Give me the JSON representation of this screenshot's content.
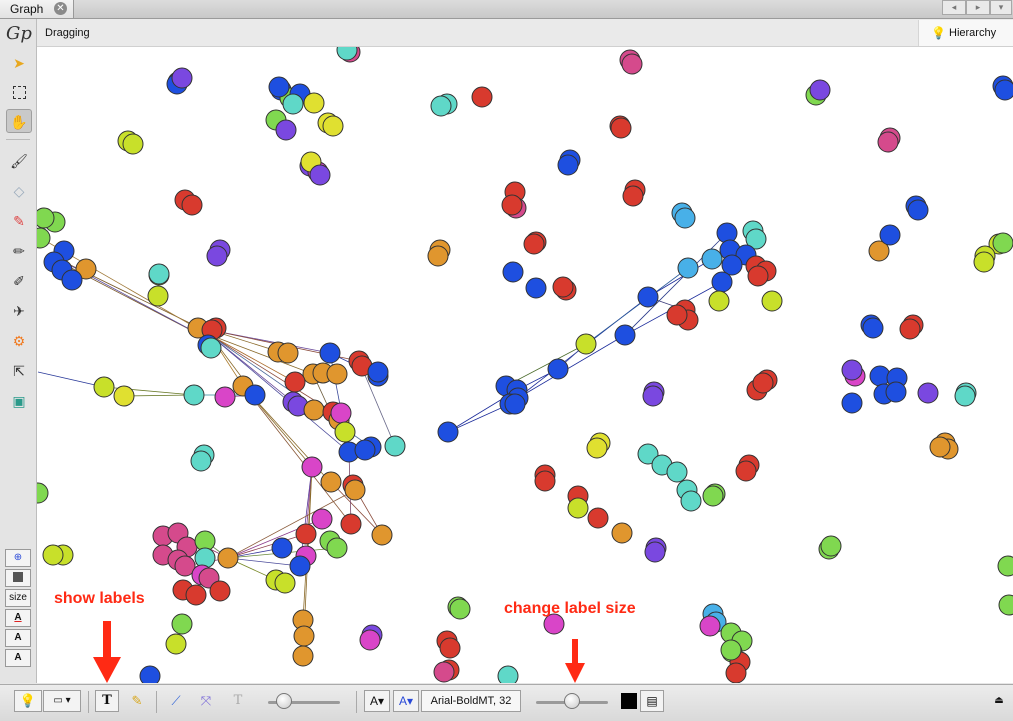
{
  "tab": {
    "title": "Graph"
  },
  "status": {
    "mode": "Dragging"
  },
  "hierarchy": {
    "label": "Hierarchy"
  },
  "left_toolbar": {
    "logo": "Gp",
    "size_label": "size"
  },
  "bottom": {
    "font": "Arial-BoldMT, 32"
  },
  "annotations": {
    "show_labels": "show labels",
    "change_label_size": "change label size"
  },
  "colors": {
    "annotation": "#ff2a14",
    "blue": "#1e4fe0",
    "orange": "#e0962e",
    "red": "#d83a2e",
    "magenta": "#d945c8",
    "pink": "#d54a8c",
    "green": "#80d850",
    "lime": "#c8e02a",
    "yellow": "#e0e030",
    "cyan": "#5fd8c8",
    "skyblue": "#48b0e8",
    "purple": "#7a48e0",
    "edge": "#8a6a2a"
  },
  "graph": {
    "nodes": [
      [
        "blue",
        178,
        82
      ],
      [
        "blue",
        177,
        84
      ],
      [
        "purple",
        182,
        78
      ],
      [
        "blue",
        281,
        90
      ],
      [
        "green",
        290,
        98
      ],
      [
        "blue",
        300,
        94
      ],
      [
        "yellow",
        314,
        103
      ],
      [
        "cyan",
        293,
        104
      ],
      [
        "blue",
        279,
        87
      ],
      [
        "green",
        276,
        120
      ],
      [
        "purple",
        286,
        130
      ],
      [
        "yellow",
        328,
        123
      ],
      [
        "yellow",
        333,
        126
      ],
      [
        "lime",
        128,
        141
      ],
      [
        "lime",
        133,
        144
      ],
      [
        "pink",
        350,
        52
      ],
      [
        "cyan",
        347,
        50
      ],
      [
        "red",
        482,
        97
      ],
      [
        "cyan",
        447,
        104
      ],
      [
        "cyan",
        441,
        106
      ],
      [
        "pink",
        630,
        60
      ],
      [
        "pink",
        632,
        64
      ],
      [
        "red",
        620,
        126
      ],
      [
        "red",
        621,
        128
      ],
      [
        "green",
        816,
        95
      ],
      [
        "purple",
        820,
        90
      ],
      [
        "pink",
        890,
        138
      ],
      [
        "pink",
        888,
        142
      ],
      [
        "blue",
        1003,
        86
      ],
      [
        "blue",
        1005,
        90
      ],
      [
        "purple",
        310,
        166
      ],
      [
        "magenta",
        318,
        172
      ],
      [
        "yellow",
        311,
        162
      ],
      [
        "purple",
        320,
        175
      ],
      [
        "blue",
        570,
        160
      ],
      [
        "blue",
        568,
        165
      ],
      [
        "red",
        515,
        192
      ],
      [
        "pink",
        516,
        208
      ],
      [
        "red",
        512,
        205
      ],
      [
        "red",
        635,
        190
      ],
      [
        "red",
        633,
        196
      ],
      [
        "skyblue",
        682,
        213
      ],
      [
        "skyblue",
        685,
        218
      ],
      [
        "blue",
        916,
        206
      ],
      [
        "blue",
        918,
        210
      ],
      [
        "red",
        185,
        200
      ],
      [
        "red",
        192,
        205
      ],
      [
        "purple",
        220,
        250
      ],
      [
        "purple",
        217,
        256
      ],
      [
        "orange",
        440,
        250
      ],
      [
        "orange",
        438,
        256
      ],
      [
        "red",
        536,
        242
      ],
      [
        "red",
        534,
        244
      ],
      [
        "blue",
        513,
        272
      ],
      [
        "blue",
        536,
        288
      ],
      [
        "red",
        566,
        290
      ],
      [
        "red",
        563,
        287
      ],
      [
        "green",
        55,
        222
      ],
      [
        "green",
        44,
        218
      ],
      [
        "green",
        40,
        238
      ],
      [
        "blue",
        64,
        251
      ],
      [
        "blue",
        54,
        262
      ],
      [
        "blue",
        62,
        270
      ],
      [
        "orange",
        86,
        269
      ],
      [
        "blue",
        72,
        280
      ],
      [
        "lime",
        159,
        275
      ],
      [
        "lime",
        158,
        296
      ],
      [
        "cyan",
        159,
        274
      ],
      [
        "orange",
        198,
        328
      ],
      [
        "red",
        216,
        328
      ],
      [
        "red",
        212,
        330
      ],
      [
        "blue",
        208,
        345
      ],
      [
        "cyan",
        211,
        348
      ],
      [
        "orange",
        278,
        352
      ],
      [
        "orange",
        288,
        353
      ],
      [
        "blue",
        330,
        353
      ],
      [
        "red",
        359,
        361
      ],
      [
        "red",
        362,
        366
      ],
      [
        "blue",
        378,
        376
      ],
      [
        "blue",
        378,
        372
      ],
      [
        "orange",
        313,
        374
      ],
      [
        "orange",
        323,
        373
      ],
      [
        "orange",
        337,
        374
      ],
      [
        "red",
        295,
        382
      ],
      [
        "orange",
        243,
        386
      ],
      [
        "blue",
        255,
        395
      ],
      [
        "purple",
        293,
        402
      ],
      [
        "purple",
        298,
        406
      ],
      [
        "orange",
        314,
        410
      ],
      [
        "red",
        333,
        412
      ],
      [
        "orange",
        339,
        420
      ],
      [
        "magenta",
        341,
        413
      ],
      [
        "lime",
        345,
        432
      ],
      [
        "blue",
        349,
        452
      ],
      [
        "blue",
        371,
        447
      ],
      [
        "cyan",
        395,
        446
      ],
      [
        "blue",
        365,
        450
      ],
      [
        "magenta",
        312,
        467
      ],
      [
        "orange",
        331,
        482
      ],
      [
        "red",
        353,
        485
      ],
      [
        "orange",
        355,
        490
      ],
      [
        "red",
        351,
        524
      ],
      [
        "orange",
        382,
        535
      ],
      [
        "magenta",
        322,
        519
      ],
      [
        "green",
        330,
        541
      ],
      [
        "green",
        337,
        548
      ],
      [
        "red",
        306,
        534
      ],
      [
        "magenta",
        306,
        556
      ],
      [
        "blue",
        282,
        548
      ],
      [
        "blue",
        300,
        566
      ],
      [
        "lime",
        276,
        580
      ],
      [
        "lime",
        285,
        583
      ],
      [
        "orange",
        303,
        620
      ],
      [
        "orange",
        304,
        636
      ],
      [
        "orange",
        303,
        656
      ],
      [
        "lime",
        104,
        387
      ],
      [
        "yellow",
        124,
        396
      ],
      [
        "cyan",
        194,
        395
      ],
      [
        "magenta",
        225,
        397
      ],
      [
        "cyan",
        204,
        455
      ],
      [
        "cyan",
        201,
        461
      ],
      [
        "green",
        38,
        493
      ],
      [
        "pink",
        163,
        536
      ],
      [
        "pink",
        178,
        533
      ],
      [
        "pink",
        187,
        547
      ],
      [
        "pink",
        163,
        555
      ],
      [
        "pink",
        178,
        560
      ],
      [
        "green",
        205,
        541
      ],
      [
        "cyan",
        205,
        558
      ],
      [
        "pink",
        185,
        566
      ],
      [
        "magenta",
        202,
        575
      ],
      [
        "pink",
        209,
        578
      ],
      [
        "orange",
        228,
        558
      ],
      [
        "red",
        183,
        590
      ],
      [
        "red",
        196,
        595
      ],
      [
        "red",
        220,
        591
      ],
      [
        "green",
        182,
        624
      ],
      [
        "lime",
        176,
        644
      ],
      [
        "lime",
        63,
        555
      ],
      [
        "lime",
        53,
        555
      ],
      [
        "blue",
        150,
        676
      ],
      [
        "blue",
        727,
        233
      ],
      [
        "cyan",
        753,
        231
      ],
      [
        "cyan",
        756,
        239
      ],
      [
        "blue",
        730,
        250
      ],
      [
        "blue",
        746,
        255
      ],
      [
        "skyblue",
        712,
        259
      ],
      [
        "blue",
        732,
        265
      ],
      [
        "skyblue",
        688,
        268
      ],
      [
        "red",
        756,
        266
      ],
      [
        "red",
        766,
        271
      ],
      [
        "red",
        758,
        276
      ],
      [
        "blue",
        722,
        282
      ],
      [
        "lime",
        719,
        301
      ],
      [
        "lime",
        772,
        301
      ],
      [
        "blue",
        648,
        297
      ],
      [
        "red",
        685,
        310
      ],
      [
        "red",
        688,
        320
      ],
      [
        "red",
        677,
        315
      ],
      [
        "blue",
        625,
        335
      ],
      [
        "lime",
        586,
        344
      ],
      [
        "blue",
        558,
        369
      ],
      [
        "blue",
        506,
        386
      ],
      [
        "blue",
        517,
        390
      ],
      [
        "blue",
        518,
        398
      ],
      [
        "blue",
        510,
        404
      ],
      [
        "blue",
        515,
        404
      ],
      [
        "blue",
        448,
        432
      ],
      [
        "blue",
        871,
        325
      ],
      [
        "blue",
        873,
        328
      ],
      [
        "red",
        913,
        325
      ],
      [
        "red",
        910,
        329
      ],
      [
        "magenta",
        855,
        376
      ],
      [
        "purple",
        852,
        370
      ],
      [
        "blue",
        880,
        376
      ],
      [
        "blue",
        897,
        378
      ],
      [
        "blue",
        884,
        394
      ],
      [
        "blue",
        896,
        392
      ],
      [
        "purple",
        928,
        393
      ],
      [
        "blue",
        852,
        403
      ],
      [
        "cyan",
        966,
        393
      ],
      [
        "cyan",
        965,
        396
      ],
      [
        "orange",
        879,
        251
      ],
      [
        "blue",
        890,
        235
      ],
      [
        "lime",
        999,
        244
      ],
      [
        "lime",
        985,
        256
      ],
      [
        "lime",
        984,
        262
      ],
      [
        "green",
        1003,
        243
      ],
      [
        "red",
        767,
        380
      ],
      [
        "red",
        757,
        390
      ],
      [
        "red",
        763,
        383
      ],
      [
        "purple",
        654,
        392
      ],
      [
        "purple",
        653,
        396
      ],
      [
        "yellow",
        600,
        443
      ],
      [
        "yellow",
        597,
        448
      ],
      [
        "cyan",
        648,
        454
      ],
      [
        "cyan",
        662,
        465
      ],
      [
        "cyan",
        677,
        472
      ],
      [
        "cyan",
        687,
        490
      ],
      [
        "cyan",
        691,
        501
      ],
      [
        "green",
        715,
        494
      ],
      [
        "green",
        713,
        496
      ],
      [
        "orange",
        945,
        443
      ],
      [
        "orange",
        948,
        449
      ],
      [
        "orange",
        940,
        447
      ],
      [
        "red",
        749,
        465
      ],
      [
        "red",
        746,
        471
      ],
      [
        "red",
        545,
        475
      ],
      [
        "red",
        545,
        481
      ],
      [
        "red",
        578,
        496
      ],
      [
        "lime",
        578,
        508
      ],
      [
        "red",
        598,
        518
      ],
      [
        "orange",
        622,
        533
      ],
      [
        "purple",
        656,
        548
      ],
      [
        "purple",
        655,
        552
      ],
      [
        "green",
        829,
        549
      ],
      [
        "green",
        831,
        546
      ],
      [
        "green",
        458,
        607
      ],
      [
        "green",
        460,
        609
      ],
      [
        "purple",
        372,
        635
      ],
      [
        "magenta",
        370,
        640
      ],
      [
        "red",
        447,
        641
      ],
      [
        "red",
        450,
        648
      ],
      [
        "red",
        449,
        670
      ],
      [
        "pink",
        444,
        672
      ],
      [
        "cyan",
        508,
        676
      ],
      [
        "magenta",
        554,
        624
      ],
      [
        "skyblue",
        713,
        614
      ],
      [
        "skyblue",
        716,
        622
      ],
      [
        "magenta",
        710,
        626
      ],
      [
        "green",
        731,
        633
      ],
      [
        "green",
        742,
        641
      ],
      [
        "green",
        732,
        652
      ],
      [
        "red",
        740,
        662
      ],
      [
        "red",
        736,
        673
      ],
      [
        "green",
        731,
        650
      ],
      [
        "green",
        1008,
        566
      ],
      [
        "green",
        1009,
        605
      ]
    ],
    "edges": [
      [
        56,
        258,
        200,
        328,
        "#7a5a2a"
      ],
      [
        56,
        260,
        210,
        340,
        "#7a5a2a"
      ],
      [
        44,
        240,
        200,
        330,
        "#a07a3a"
      ],
      [
        64,
        262,
        210,
        340,
        "#5a4a9a"
      ],
      [
        210,
        330,
        280,
        352,
        "#8a6a2a"
      ],
      [
        210,
        330,
        330,
        353,
        "#6a4a9a"
      ],
      [
        210,
        330,
        359,
        361,
        "#8a4a3a"
      ],
      [
        210,
        335,
        313,
        374,
        "#8a6a2a"
      ],
      [
        210,
        335,
        295,
        382,
        "#aa6a2a"
      ],
      [
        210,
        335,
        255,
        395,
        "#8a6a2a"
      ],
      [
        210,
        335,
        293,
        402,
        "#6a4a9a"
      ],
      [
        210,
        335,
        333,
        412,
        "#8a4a3a"
      ],
      [
        210,
        335,
        349,
        452,
        "#4a4a9a"
      ],
      [
        210,
        335,
        371,
        447,
        "#4a6a9a"
      ],
      [
        210,
        335,
        243,
        386,
        "#aa7a2a"
      ],
      [
        243,
        386,
        312,
        467,
        "#8a6a2a"
      ],
      [
        243,
        386,
        330,
        482,
        "#8a6a2a"
      ],
      [
        243,
        386,
        351,
        524,
        "#8a5a3a"
      ],
      [
        330,
        353,
        378,
        376,
        "#2a3a9a"
      ],
      [
        330,
        353,
        349,
        452,
        "#3a4a9a"
      ],
      [
        313,
        374,
        349,
        452,
        "#6a5a3a"
      ],
      [
        359,
        361,
        395,
        446,
        "#6a6a8a"
      ],
      [
        312,
        467,
        306,
        534,
        "#8a3a8a"
      ],
      [
        312,
        467,
        300,
        566,
        "#5a3a9a"
      ],
      [
        312,
        467,
        303,
        620,
        "#8a6a2a"
      ],
      [
        312,
        467,
        303,
        656,
        "#8a6a2a"
      ],
      [
        331,
        482,
        382,
        535,
        "#8a4a3a"
      ],
      [
        353,
        485,
        382,
        535,
        "#8a4a3a"
      ],
      [
        349,
        452,
        351,
        524,
        "#7a4a6a"
      ],
      [
        228,
        558,
        322,
        519,
        "#8a3a8a"
      ],
      [
        228,
        558,
        306,
        534,
        "#8a3a4a"
      ],
      [
        228,
        558,
        282,
        548,
        "#3a3a9a"
      ],
      [
        228,
        558,
        276,
        580,
        "#7a8a2a"
      ],
      [
        228,
        558,
        300,
        566,
        "#4a4a9a"
      ],
      [
        228,
        558,
        337,
        548,
        "#6a8a3a"
      ],
      [
        228,
        558,
        355,
        490,
        "#8a5a3a"
      ],
      [
        185,
        566,
        228,
        558,
        "#8a3a6a"
      ],
      [
        178,
        533,
        228,
        558,
        "#8a3a6a"
      ],
      [
        205,
        541,
        228,
        558,
        "#6a8a4a"
      ],
      [
        104,
        387,
        194,
        395,
        "#6a7a2a"
      ],
      [
        124,
        396,
        194,
        395,
        "#6a7a2a"
      ],
      [
        194,
        395,
        255,
        395,
        "#2a8a9a"
      ],
      [
        225,
        397,
        255,
        395,
        "#8a3a8a"
      ],
      [
        38,
        372,
        104,
        387,
        "#2a3a9a"
      ],
      [
        448,
        432,
        517,
        390,
        "#1a2a9a"
      ],
      [
        448,
        432,
        510,
        404,
        "#1a2a9a"
      ],
      [
        517,
        390,
        558,
        369,
        "#1a2a9a"
      ],
      [
        506,
        386,
        586,
        344,
        "#4a6a2a"
      ],
      [
        518,
        398,
        625,
        335,
        "#1a2a9a"
      ],
      [
        510,
        404,
        648,
        297,
        "#1a2a9a"
      ],
      [
        558,
        369,
        586,
        344,
        "#3a4a9a"
      ],
      [
        586,
        344,
        688,
        268,
        "#2a5a9a"
      ],
      [
        625,
        335,
        722,
        282,
        "#1a2a9a"
      ],
      [
        648,
        297,
        712,
        259,
        "#1a2a9a"
      ],
      [
        648,
        297,
        685,
        310,
        "#3a3a7a"
      ],
      [
        625,
        335,
        727,
        233,
        "#2a3a8a"
      ]
    ]
  }
}
